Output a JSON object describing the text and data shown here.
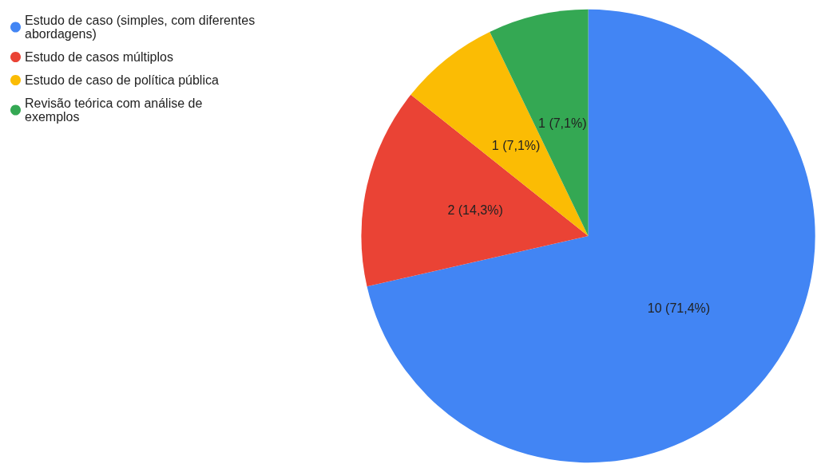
{
  "chart_data": {
    "type": "pie",
    "categories": [
      "Estudo de caso (simples, com diferentes abordagens)",
      "Estudo de casos múltiplos",
      "Estudo de caso de política pública",
      "Revisão teórica com análise de exemplos"
    ],
    "values": [
      10,
      2,
      1,
      1
    ],
    "value_labels": [
      "10 (71,4%)",
      "2 (14,3%)",
      "1 (7,1%)",
      "1 (7,1%)"
    ],
    "colors": [
      "#4285f4",
      "#ea4335",
      "#fbbc04",
      "#34a853"
    ],
    "legend": "top left"
  }
}
